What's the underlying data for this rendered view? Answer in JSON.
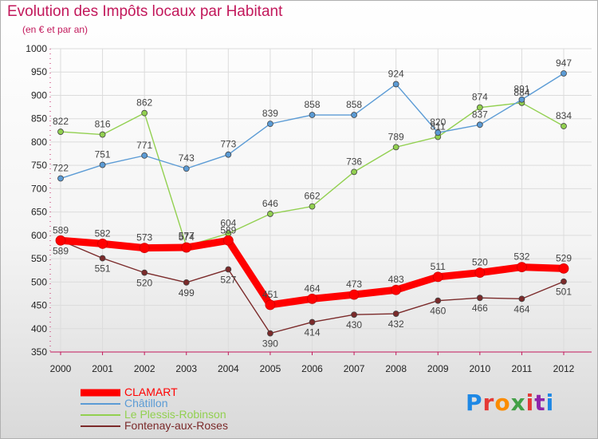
{
  "title": "Evolution des Impôts locaux par Habitant",
  "subtitle": "(en € et par an)",
  "logo": {
    "text": "Proxiti",
    "colors": [
      "#1e88e5",
      "#e53935",
      "#fb8c00",
      "#43a047",
      "#e53935",
      "#8e24aa",
      "#1e88e5"
    ]
  },
  "chart_data": {
    "type": "line",
    "x": [
      "2000",
      "2001",
      "2002",
      "2003",
      "2004",
      "2005",
      "2006",
      "2007",
      "2008",
      "2009",
      "2010",
      "2011",
      "2012"
    ],
    "ylim": [
      350,
      1000
    ],
    "yticks": [
      350,
      400,
      450,
      500,
      550,
      600,
      650,
      700,
      750,
      800,
      850,
      900,
      950,
      1000
    ],
    "grid": true,
    "legend_position": "bottom-left",
    "series": [
      {
        "name": "CLAMART",
        "color": "#ff0000",
        "values": [
          589,
          582,
          573,
          574,
          589,
          451,
          464,
          473,
          483,
          511,
          520,
          532,
          529
        ]
      },
      {
        "name": "Châtillon",
        "color": "#5b9bd5",
        "values": [
          722,
          751,
          771,
          743,
          773,
          839,
          858,
          858,
          924,
          820,
          837,
          891,
          947
        ]
      },
      {
        "name": "Le Plessis-Robinson",
        "color": "#92d050",
        "values": [
          822,
          816,
          862,
          577,
          604,
          646,
          662,
          736,
          789,
          811,
          874,
          884,
          834
        ]
      },
      {
        "name": "Fontenay-aux-Roses",
        "color": "#7b2a2a",
        "values": [
          589,
          551,
          520,
          499,
          527,
          390,
          414,
          430,
          432,
          460,
          466,
          464,
          501
        ]
      }
    ]
  }
}
